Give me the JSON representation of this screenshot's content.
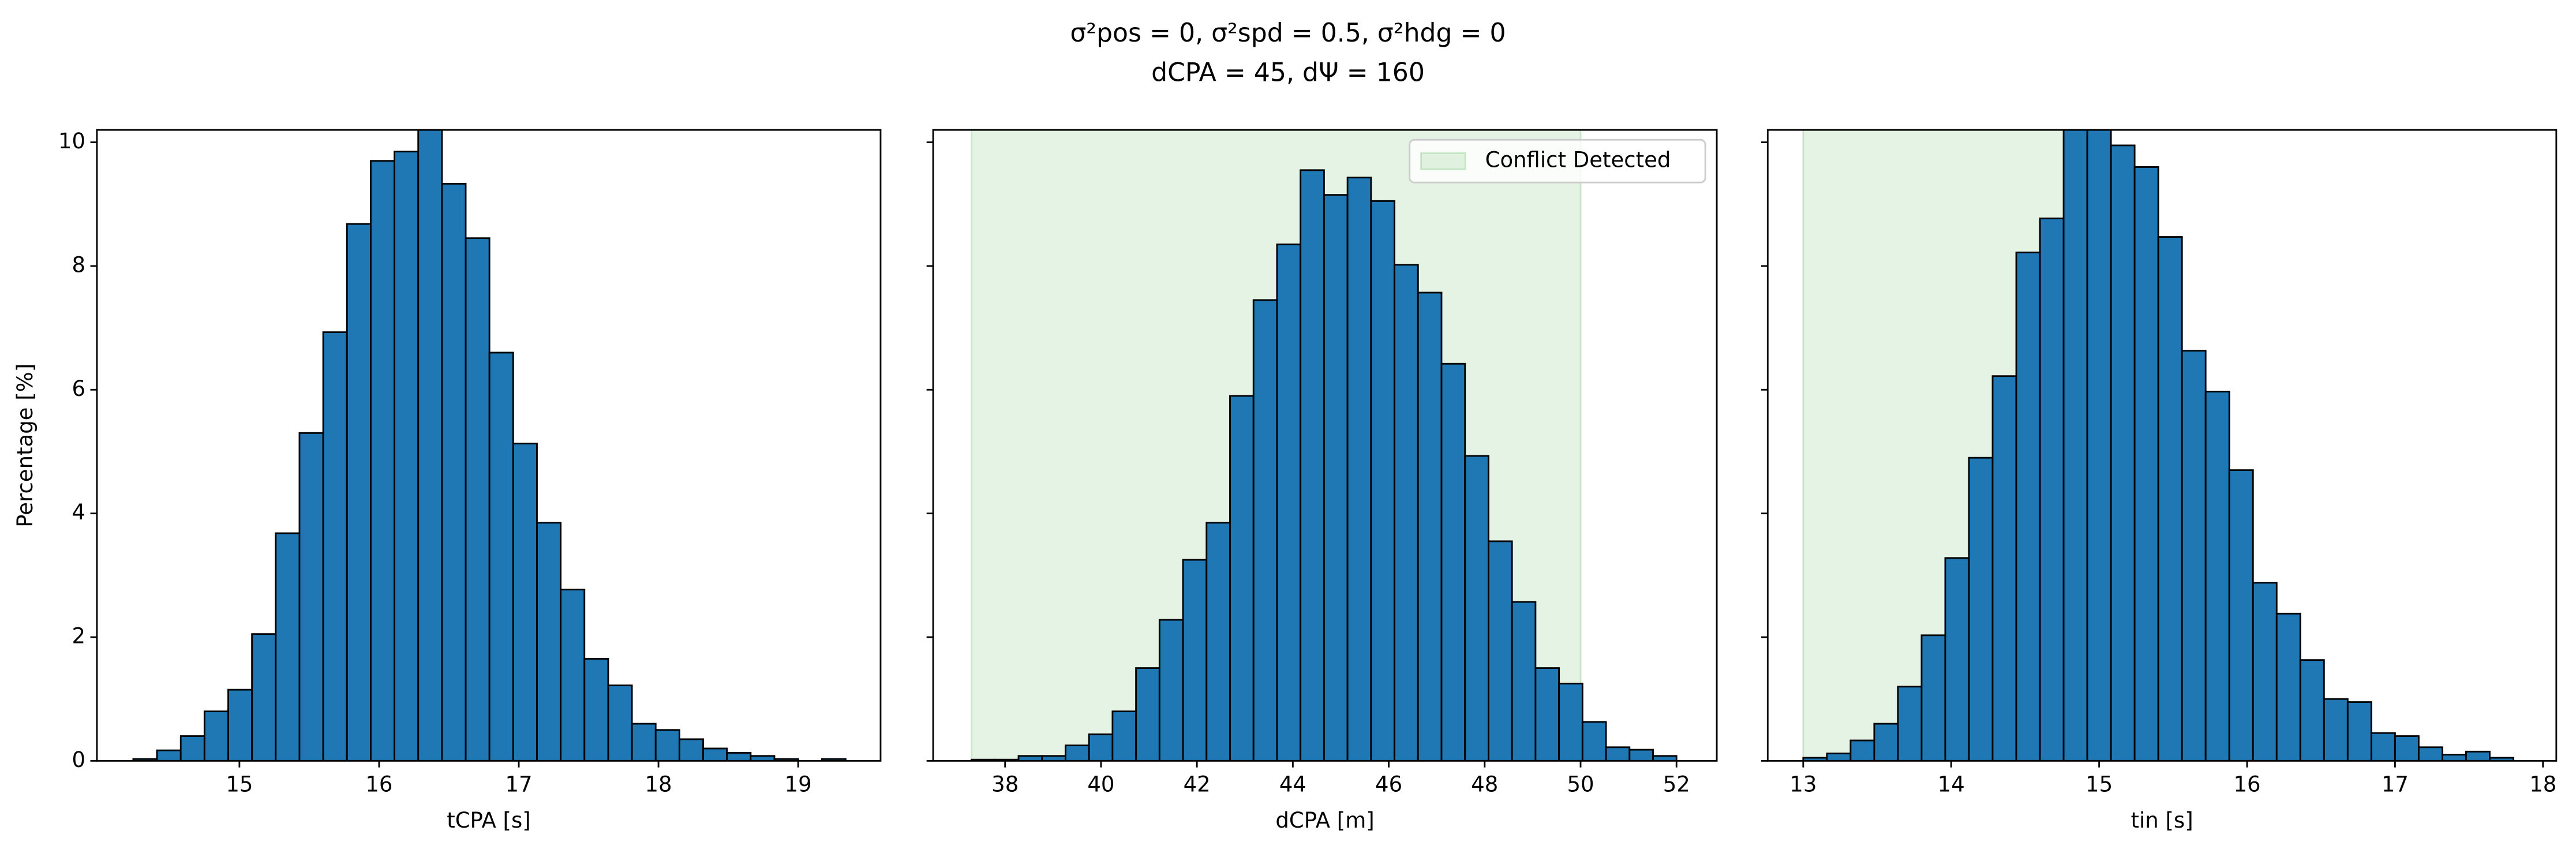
{
  "title_lines": [
    "σ²pos = 0, σ²spd = 0.5, σ²hdg = 0",
    "dCPA = 45, dΨ = 160"
  ],
  "chart_data": [
    {
      "type": "histogram",
      "ylabel": "Percentage [%]",
      "xlabel": "tCPA [s]",
      "color": "#1f77b4",
      "edgecolor": "#000000",
      "bins": [
        14.24,
        14.41,
        14.58,
        14.75,
        14.92,
        15.09,
        15.26,
        15.43,
        15.6,
        15.77,
        15.94,
        16.11,
        16.28,
        16.45,
        16.62,
        16.79,
        16.96,
        17.13,
        17.3,
        17.47,
        17.64,
        17.81,
        17.98,
        18.15,
        18.32,
        18.49,
        18.66,
        18.83,
        19.0,
        19.17,
        19.34
      ],
      "values": [
        0.03,
        0.17,
        0.4,
        0.8,
        1.15,
        2.05,
        3.68,
        5.3,
        6.93,
        8.68,
        9.7,
        9.85,
        10.2,
        9.33,
        8.45,
        6.6,
        5.13,
        3.85,
        2.77,
        1.65,
        1.22,
        0.6,
        0.5,
        0.35,
        0.2,
        0.13,
        0.08,
        0.03,
        0.0,
        0.03
      ],
      "xlim": [
        13.98,
        19.59
      ],
      "xticks": [
        15,
        16,
        17,
        18,
        19
      ],
      "ylim": [
        0,
        10.2
      ],
      "yticks": [
        0,
        2,
        4,
        6,
        8,
        10
      ]
    },
    {
      "type": "histogram",
      "xlabel": "dCPA [m]",
      "color": "#1f77b4",
      "edgecolor": "#000000",
      "span": {
        "range": [
          37.3,
          50
        ],
        "label": "Conflict Detected",
        "color": "#2ca02c"
      },
      "legend": "upper right",
      "bins": [
        37.3,
        37.79,
        38.28,
        38.77,
        39.26,
        39.75,
        40.24,
        40.73,
        41.22,
        41.71,
        42.2,
        42.69,
        43.18,
        43.67,
        44.16,
        44.65,
        45.14,
        45.63,
        46.12,
        46.61,
        47.1,
        47.59,
        48.08,
        48.57,
        49.06,
        49.55,
        50.04,
        50.53,
        51.02,
        51.51,
        52.0
      ],
      "values": [
        0.02,
        0.02,
        0.08,
        0.08,
        0.25,
        0.43,
        0.8,
        1.5,
        2.28,
        3.25,
        3.85,
        5.9,
        7.45,
        8.35,
        9.55,
        9.15,
        9.43,
        9.05,
        8.02,
        7.57,
        6.42,
        4.93,
        3.55,
        2.57,
        1.5,
        1.25,
        0.63,
        0.22,
        0.18,
        0.08
      ],
      "xlim": [
        36.5,
        52.84
      ],
      "xticks": [
        38,
        40,
        42,
        44,
        46,
        48,
        50,
        52
      ]
    },
    {
      "type": "histogram",
      "xlabel": "tin [s]",
      "color": "#1f77b4",
      "edgecolor": "#000000",
      "span": {
        "range": [
          13.0,
          14.98
        ],
        "color": "#2ca02c"
      },
      "bins": [
        13.0,
        13.16,
        13.32,
        13.48,
        13.64,
        13.8,
        13.96,
        14.12,
        14.28,
        14.44,
        14.6,
        14.76,
        14.92,
        15.08,
        15.24,
        15.4,
        15.56,
        15.72,
        15.88,
        16.04,
        16.2,
        16.36,
        16.52,
        16.68,
        16.84,
        17.0,
        17.16,
        17.32,
        17.48,
        17.64,
        17.8
      ],
      "values": [
        0.05,
        0.12,
        0.33,
        0.6,
        1.2,
        2.03,
        3.28,
        4.9,
        6.22,
        8.22,
        8.77,
        10.5,
        10.25,
        9.95,
        9.6,
        8.47,
        6.63,
        5.97,
        4.7,
        2.88,
        2.38,
        1.63,
        1.0,
        0.95,
        0.45,
        0.4,
        0.22,
        0.1,
        0.15,
        0.05
      ],
      "xlim": [
        12.76,
        18.09
      ],
      "xticks": [
        13,
        14,
        15,
        16,
        17,
        18
      ]
    }
  ]
}
